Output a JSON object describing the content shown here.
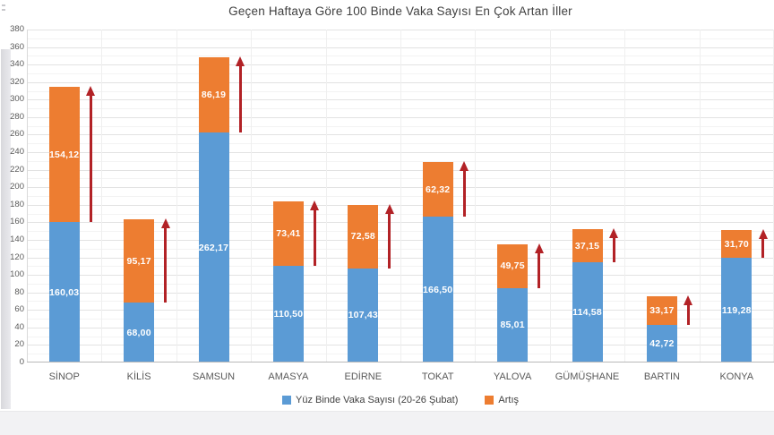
{
  "chart_data": {
    "type": "bar",
    "stacked": true,
    "title": "Geçen Haftaya Göre 100 Binde Vaka Sayısı En Çok Artan İller",
    "categories": [
      "SİNOP",
      "KİLİS",
      "SAMSUN",
      "AMASYA",
      "EDİRNE",
      "TOKAT",
      "YALOVA",
      "GÜMÜŞHANE",
      "BARTIN",
      "KONYA"
    ],
    "series": [
      {
        "name": "Yüz Binde Vaka Sayısı (20-26 Şubat)",
        "color": "#5b9bd5",
        "values": [
          160.03,
          68.0,
          262.17,
          110.5,
          107.43,
          166.5,
          85.01,
          114.58,
          42.72,
          119.28
        ],
        "labels": [
          "160,03",
          "68,00",
          "262,17",
          "110,50",
          "107,43",
          "166,50",
          "85,01",
          "114,58",
          "42,72",
          "119,28"
        ]
      },
      {
        "name": "Artış",
        "color": "#ed7d31",
        "values": [
          154.12,
          95.17,
          86.19,
          73.41,
          72.58,
          62.32,
          49.75,
          37.15,
          33.17,
          31.7
        ],
        "labels": [
          "154,12",
          "95,17",
          "86,19",
          "73,41",
          "72,58",
          "62,32",
          "49,75",
          "37,15",
          "33,17",
          "31,70"
        ]
      }
    ],
    "ylim": [
      0,
      380
    ],
    "ytick_step": 20,
    "yticks": [
      380,
      360,
      340,
      320,
      300,
      280,
      260,
      240,
      220,
      200,
      180,
      160,
      140,
      120,
      100,
      80,
      60,
      40,
      20,
      0
    ],
    "grid": true,
    "legend_position": "bottom",
    "annotations": {
      "increase_arrows": true,
      "arrow_color": "#b22226"
    },
    "value_label_color": "#ffffff",
    "tick_label_color": "#595959"
  }
}
